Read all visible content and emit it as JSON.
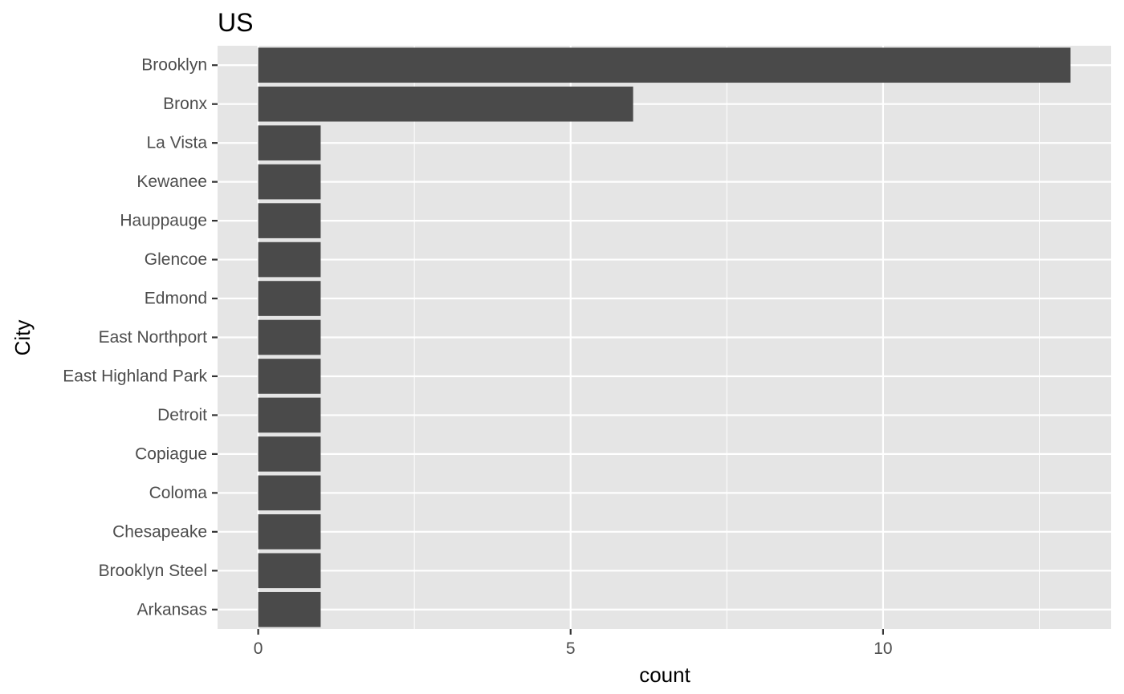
{
  "chart_data": {
    "type": "bar",
    "orientation": "horizontal",
    "title": "US",
    "xlabel": "count",
    "ylabel": "City",
    "categories": [
      "Brooklyn",
      "Bronx",
      "La Vista",
      "Kewanee",
      "Hauppauge",
      "Glencoe",
      "Edmond",
      "East Northport",
      "East Highland Park",
      "Detroit",
      "Copiague",
      "Coloma",
      "Chesapeake",
      "Brooklyn Steel",
      "Arkansas"
    ],
    "values": [
      13,
      6,
      1,
      1,
      1,
      1,
      1,
      1,
      1,
      1,
      1,
      1,
      1,
      1,
      1
    ],
    "xlim": [
      -0.65,
      13.65
    ],
    "xticks": [
      0,
      5,
      10
    ],
    "xtick_labels": [
      "0",
      "5",
      "10"
    ],
    "grid": true,
    "legend": "none",
    "colors": {
      "bar": "#4a4a4a",
      "panel": "#e5e5e5",
      "grid": "#ffffff",
      "tick": "#333333"
    }
  }
}
